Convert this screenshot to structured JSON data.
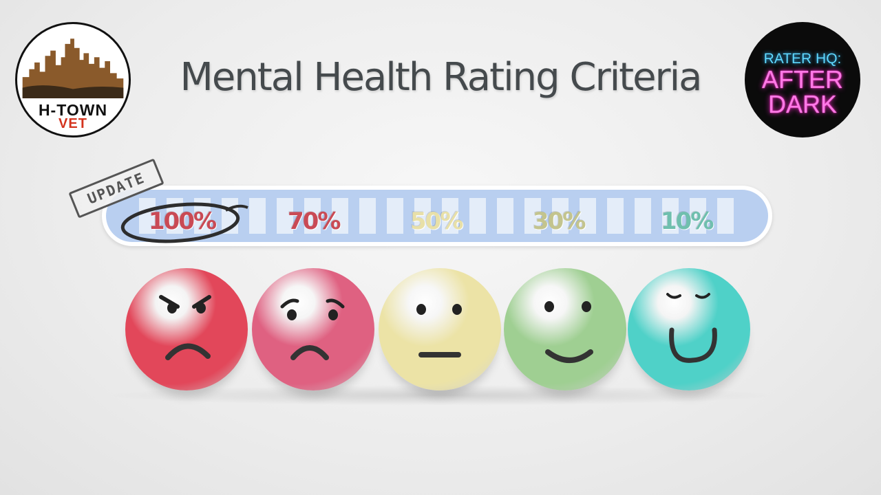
{
  "title": "Mental Health Rating Criteria",
  "logo_left": {
    "line1": "H-TOWN",
    "line2": "VET"
  },
  "logo_right": {
    "line1": "RATER HQ:",
    "line2": "AFTER",
    "line3": "DARK"
  },
  "stamp": "UPDATE",
  "ratings": [
    {
      "label": "100%",
      "color": "#c94a55",
      "face": "angry",
      "face_color": "#e2475a",
      "circled": true
    },
    {
      "label": "70%",
      "color": "#c94a55",
      "face": "sad",
      "face_color": "#df6181",
      "circled": false
    },
    {
      "label": "50%",
      "color": "#e8e0a8",
      "face": "neutral",
      "face_color": "#ece3a6",
      "circled": false
    },
    {
      "label": "30%",
      "color": "#c3c48e",
      "face": "smile",
      "face_color": "#9fcf92",
      "circled": false
    },
    {
      "label": "10%",
      "color": "#6fbfae",
      "face": "happy",
      "face_color": "#4fd1c8",
      "circled": false
    }
  ]
}
